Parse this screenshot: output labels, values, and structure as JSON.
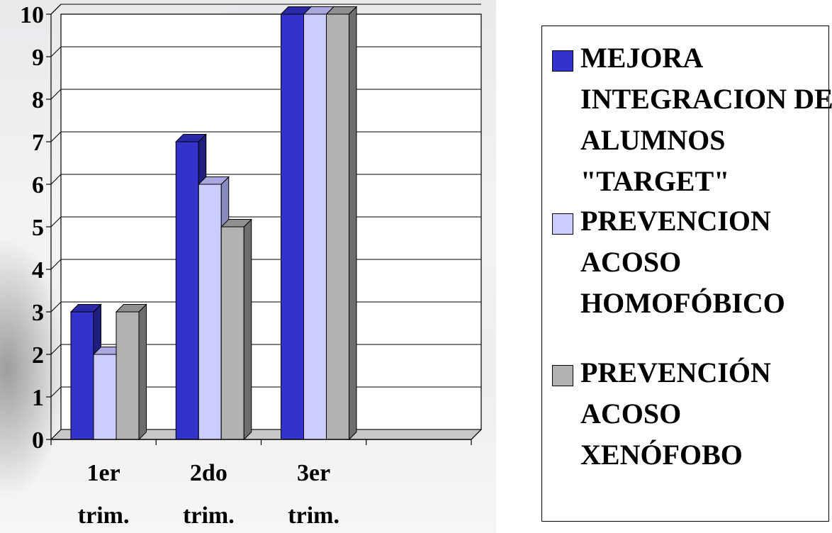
{
  "chart_data": {
    "type": "bar",
    "style": "3d-clustered-column",
    "categories": [
      "1er trim.",
      "2do trim.",
      "3er trim.",
      ""
    ],
    "series": [
      {
        "name": "MEJORA INTEGRACION DE ALUMNOS \"TARGET\"",
        "values": [
          3,
          7,
          10,
          0
        ],
        "color": "#3333cc",
        "side": "#1f1f80",
        "top": "#2a2aa8"
      },
      {
        "name": "PREVENCION ACOSO HOMOFÓBICO",
        "values": [
          2,
          6,
          10,
          0
        ],
        "color": "#ccccff",
        "side": "#8a8ac0",
        "top": "#a9a9e0"
      },
      {
        "name": "PREVENCIÓN ACOSO XENÓFOBO",
        "values": [
          3,
          5,
          10,
          0
        ],
        "color": "#b2b2b2",
        "side": "#6e6e6e",
        "top": "#909090"
      }
    ],
    "ylim": [
      0,
      10
    ],
    "yticks": [
      "0",
      "1",
      "2",
      "3",
      "4",
      "5",
      "6",
      "7",
      "8",
      "9",
      "10"
    ],
    "grid": true,
    "legend_position": "right"
  }
}
